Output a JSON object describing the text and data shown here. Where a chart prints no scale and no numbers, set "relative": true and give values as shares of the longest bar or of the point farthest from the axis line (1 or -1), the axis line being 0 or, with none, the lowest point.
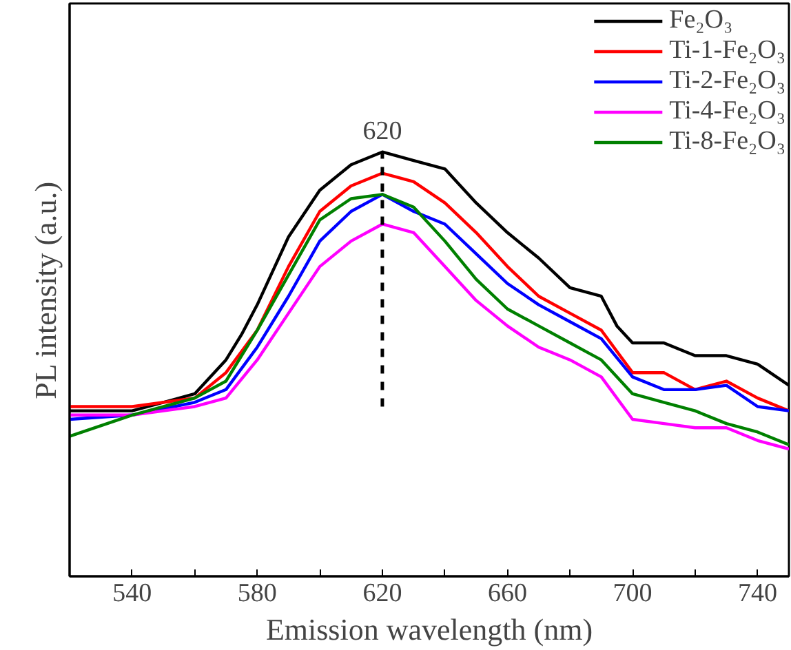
{
  "chart_data": {
    "type": "line",
    "relative": true,
    "xlabel": "Emission wavelength (nm)",
    "ylabel": "PL intensity (a.u.)",
    "xlim": [
      520,
      750
    ],
    "xticks": [
      540,
      {
        "value": 560,
        "label": null
      },
      580,
      {
        "value": 600,
        "label": null
      },
      620,
      {
        "value": 640,
        "label": null
      },
      660,
      {
        "value": 680,
        "label": null
      },
      700,
      {
        "value": 720,
        "label": null
      },
      740
    ],
    "x": [
      520,
      540,
      560,
      570,
      580,
      590,
      600,
      610,
      620,
      630,
      640,
      650,
      660,
      670,
      680,
      690,
      700,
      710,
      720,
      730,
      740,
      750
    ],
    "legend": "top right",
    "grid": false,
    "marker": "none",
    "line_style": "solid",
    "ref_lines": [
      {
        "axis": "x",
        "value": 620,
        "label": "620",
        "line_style": "dashed",
        "color": "#000000"
      }
    ],
    "series": [
      {
        "name": "Fe₂O₃",
        "color": "#000000",
        "x": [
          520,
          540,
          560,
          570,
          575,
          580,
          590,
          600,
          610,
          620,
          630,
          640,
          650,
          660,
          670,
          680,
          690,
          695,
          700,
          710,
          720,
          730,
          740,
          750
        ],
        "values": [
          0.39,
          0.39,
          0.43,
          0.51,
          0.57,
          0.64,
          0.8,
          0.91,
          0.97,
          1.0,
          0.98,
          0.96,
          0.88,
          0.81,
          0.75,
          0.68,
          0.66,
          0.59,
          0.55,
          0.55,
          0.52,
          0.52,
          0.5,
          0.45
        ]
      },
      {
        "name": "Ti-1-Fe₂O₃",
        "color": "#ff0000",
        "values": [
          0.4,
          0.4,
          0.42,
          0.48,
          0.58,
          0.73,
          0.86,
          0.92,
          0.95,
          0.93,
          0.88,
          0.81,
          0.73,
          0.66,
          0.62,
          0.58,
          0.48,
          0.48,
          0.44,
          0.46,
          0.42,
          0.39
        ]
      },
      {
        "name": "Ti-2-Fe₂O₃",
        "color": "#0000ff",
        "values": [
          0.37,
          0.38,
          0.41,
          0.44,
          0.54,
          0.66,
          0.79,
          0.86,
          0.9,
          0.86,
          0.83,
          0.76,
          0.69,
          0.64,
          0.6,
          0.56,
          0.47,
          0.44,
          0.44,
          0.45,
          0.4,
          0.39
        ]
      },
      {
        "name": "Ti-4-Fe₂O₃",
        "color": "#ff00ff",
        "values": [
          0.38,
          0.38,
          0.4,
          0.42,
          0.51,
          0.62,
          0.73,
          0.79,
          0.83,
          0.81,
          0.73,
          0.65,
          0.59,
          0.54,
          0.51,
          0.47,
          0.37,
          0.36,
          0.35,
          0.35,
          0.32,
          0.3
        ]
      },
      {
        "name": "Ti-8-Fe₂O₃",
        "color": "#008000",
        "values": [
          0.33,
          0.38,
          0.42,
          0.46,
          0.58,
          0.71,
          0.84,
          0.89,
          0.9,
          0.87,
          0.79,
          0.7,
          0.63,
          0.59,
          0.55,
          0.51,
          0.43,
          0.41,
          0.39,
          0.36,
          0.34,
          0.31
        ]
      }
    ]
  }
}
